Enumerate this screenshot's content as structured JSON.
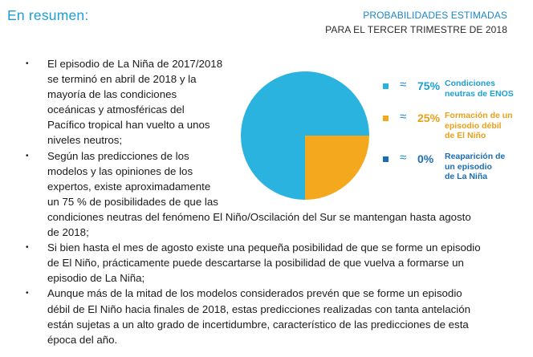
{
  "heading": "En resumen:",
  "probabilities": {
    "title_line1": "PROBABILIDADES ESTIMADAS",
    "title_line2": "PARA EL TERCER TRIMESTRE DE 2018"
  },
  "bullets": [
    {
      "narrow_lines": [
        "El episodio de La Niña de 2017/2018",
        "se terminó en abril de 2018 y la",
        "mayoría de las condiciones",
        "oceánicas y atmosféricas del",
        "Pacífico tropical han vuelto a unos",
        "niveles neutros;"
      ],
      "wide_lines": []
    },
    {
      "narrow_lines": [
        "Según las predicciones de los",
        "modelos y las opiniones de los",
        "expertos, existe aproximadamente",
        "un 75 % de posibilidades de que las"
      ],
      "wide_lines": [
        "condiciones neutras del fenómeno El Niño/Oscilación del Sur se mantengan hasta agosto",
        "de 2018;"
      ]
    },
    {
      "narrow_lines": [],
      "wide_lines": [
        "Si bien hasta el mes de agosto existe una pequeña posibilidad de que se forme un episodio",
        "de El Niño, prácticamente puede descartarse la posibilidad de que vuelva a formarse un",
        "episodio de La Niña;"
      ]
    },
    {
      "narrow_lines": [],
      "wide_lines": [
        "Aunque más de la mitad de los modelos considerados prevén que se forme un episodio",
        "débil de El Niño hacia finales de 2018, estas predicciones realizadas con tanta antelación",
        "están sujetas a un alto grado de incertidumbre, característico de las predicciones de esta",
        "época del año."
      ]
    }
  ],
  "chart_data": {
    "type": "pie",
    "title": "PROBABILIDADES ESTIMADAS PARA EL TERCER TRIMESTRE DE 2018",
    "slices": [
      {
        "label_lines": [
          "Condiciones",
          "neutras de ENOS"
        ],
        "approx": "≈",
        "pct_label": "75%",
        "value": 75,
        "color": "#2ab3de",
        "label_color": "#1b9fd4"
      },
      {
        "label_lines": [
          "Formación de un",
          "episodio débil",
          "de El Niño"
        ],
        "approx": "≈",
        "pct_label": "25%",
        "value": 25,
        "color": "#f4a81d",
        "label_color": "#e8a018"
      },
      {
        "label_lines": [
          "Reaparición de",
          "un episodio",
          "de La Niña"
        ],
        "approx": "≈",
        "pct_label": "0%",
        "value": 0,
        "color": "#1b6db3",
        "label_color": "#1b6db3"
      }
    ]
  }
}
